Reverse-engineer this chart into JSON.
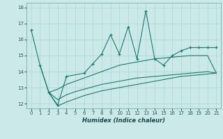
{
  "xlabel": "Humidex (Indice chaleur)",
  "xlim": [
    -0.5,
    21.5
  ],
  "ylim": [
    11.7,
    18.3
  ],
  "yticks": [
    12,
    13,
    14,
    15,
    16,
    17,
    18
  ],
  "xticks": [
    0,
    1,
    2,
    3,
    4,
    5,
    6,
    7,
    8,
    9,
    10,
    11,
    12,
    13,
    14,
    15,
    16,
    17,
    18,
    19,
    20,
    21
  ],
  "bg_color": "#cce9e9",
  "line_color": "#1a7a6e",
  "grid_color": "#aad4d4",
  "line1_x": [
    0,
    1,
    2,
    3,
    4,
    6,
    7,
    8,
    9,
    10,
    11,
    12,
    13,
    14,
    15,
    16,
    17,
    18,
    19,
    20,
    21
  ],
  "line1_y": [
    16.6,
    14.4,
    12.7,
    11.9,
    13.7,
    13.9,
    14.5,
    15.1,
    16.3,
    15.1,
    16.8,
    14.8,
    17.8,
    14.8,
    14.4,
    15.0,
    15.3,
    15.5,
    15.5,
    15.5,
    15.5
  ],
  "line2_x": [
    1,
    2,
    3,
    4,
    5,
    6,
    7,
    8,
    9,
    10,
    11,
    12,
    13,
    14,
    15,
    16,
    17,
    18,
    19,
    20,
    21
  ],
  "line2_y": [
    14.4,
    12.7,
    12.9,
    13.2,
    13.4,
    13.6,
    13.8,
    14.0,
    14.2,
    14.4,
    14.5,
    14.6,
    14.7,
    14.8,
    14.85,
    14.9,
    14.95,
    15.0,
    15.0,
    15.0,
    13.9
  ],
  "line3_x": [
    2,
    3,
    4,
    5,
    6,
    7,
    8,
    9,
    10,
    11,
    12,
    13,
    14,
    15,
    16,
    17,
    18,
    19,
    20,
    21
  ],
  "line3_y": [
    12.7,
    12.25,
    12.55,
    12.75,
    12.9,
    13.05,
    13.2,
    13.3,
    13.4,
    13.5,
    13.6,
    13.65,
    13.7,
    13.75,
    13.8,
    13.85,
    13.9,
    13.95,
    14.0,
    13.9
  ],
  "line4_x": [
    2,
    3,
    4,
    5,
    6,
    7,
    8,
    9,
    10,
    11,
    12,
    13,
    14,
    15,
    16,
    17,
    18,
    19,
    20,
    21
  ],
  "line4_y": [
    12.7,
    11.85,
    12.1,
    12.3,
    12.5,
    12.65,
    12.8,
    12.9,
    13.0,
    13.1,
    13.2,
    13.3,
    13.4,
    13.5,
    13.6,
    13.7,
    13.75,
    13.8,
    13.85,
    13.9
  ]
}
